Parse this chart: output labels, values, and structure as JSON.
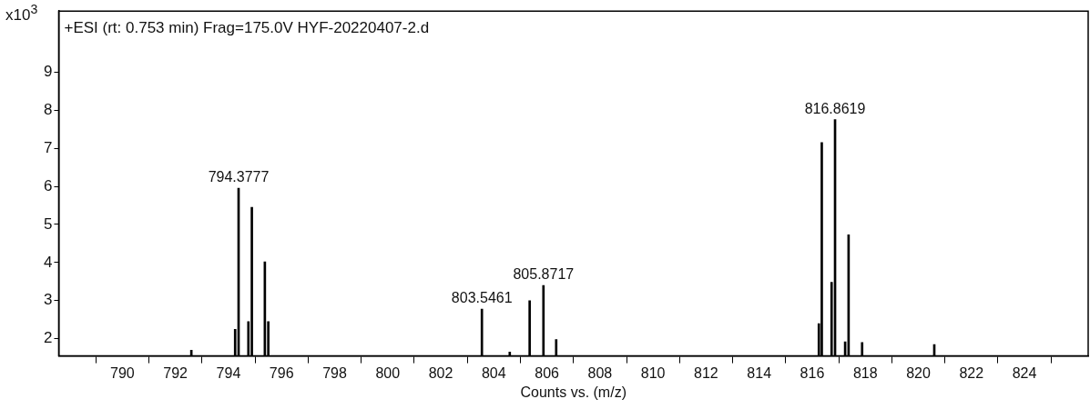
{
  "chart_data": {
    "type": "bar",
    "title": "+ESI (rt: 0.753 min) Frag=175.0V HYF-20220407-2.d",
    "xlabel": "Counts vs. (m/z)",
    "ylabel": "x10$^{3}$",
    "x": [
      792.6,
      794.25,
      794.38,
      794.75,
      794.88,
      795.37,
      795.5,
      803.55,
      804.6,
      805.35,
      805.87,
      806.35,
      816.25,
      816.36,
      816.73,
      816.86,
      817.24,
      817.37,
      817.88,
      820.6
    ],
    "values": [
      1.7,
      2.25,
      5.95,
      2.45,
      5.45,
      4.02,
      2.45,
      2.78,
      1.65,
      3.0,
      3.4,
      1.98,
      2.4,
      7.15,
      3.48,
      7.75,
      1.92,
      4.73,
      1.9,
      1.85
    ],
    "color": "#000000",
    "xlim": [
      787.6,
      826.4
    ],
    "xticks": [
      790,
      792,
      794,
      796,
      798,
      800,
      802,
      804,
      806,
      808,
      810,
      812,
      814,
      816,
      818,
      820,
      822,
      824
    ],
    "ylim": [
      1.55,
      10.6
    ],
    "yticks": [
      2,
      3,
      4,
      5,
      6,
      7,
      8,
      9
    ],
    "annotations": [
      {
        "text": "794.3777",
        "x": 794.38,
        "y": 5.95
      },
      {
        "text": "803.5461",
        "x": 803.55,
        "y": 2.78
      },
      {
        "text": "805.8717",
        "x": 805.87,
        "y": 3.4
      },
      {
        "text": "816.8619",
        "x": 816.86,
        "y": 7.75
      }
    ],
    "grid": false,
    "legend": false
  }
}
